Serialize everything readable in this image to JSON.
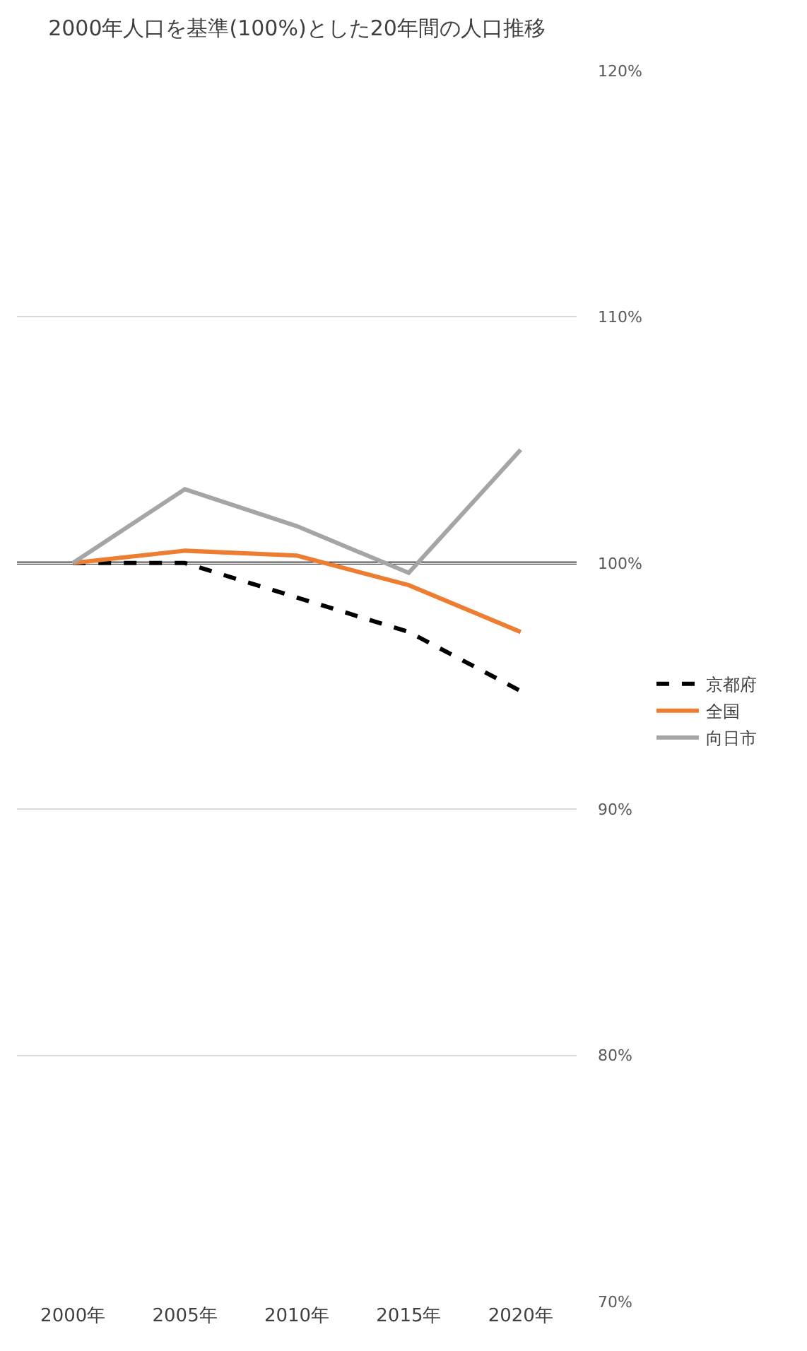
{
  "chart_data": {
    "type": "line",
    "title": "2000年人口を基準(100%)とした20年間の人口推移",
    "categories": [
      "2000年",
      "2005年",
      "2010年",
      "2015年",
      "2020年"
    ],
    "series": [
      {
        "name": "京都府",
        "color": "#000000",
        "line_style": "dashed",
        "values": [
          100,
          100.0,
          98.6,
          97.2,
          94.8
        ]
      },
      {
        "name": "全国",
        "color": "#ed7d31",
        "line_style": "solid",
        "values": [
          100,
          100.5,
          100.3,
          99.1,
          97.2
        ]
      },
      {
        "name": "向日市",
        "color": "#a5a5a5",
        "line_style": "solid",
        "values": [
          100,
          103.0,
          101.5,
          99.6,
          104.6
        ]
      }
    ],
    "ylim": [
      70,
      120
    ],
    "yticks": [
      {
        "value": 70,
        "label": "70%"
      },
      {
        "value": 80,
        "label": "80%"
      },
      {
        "value": 90,
        "label": "90%"
      },
      {
        "value": 100,
        "label": "100%"
      },
      {
        "value": 110,
        "label": "110%"
      },
      {
        "value": 120,
        "label": "120%"
      }
    ],
    "ref_lines": [
      {
        "axis": "y",
        "value": 100,
        "label": null,
        "color": "#000000"
      }
    ],
    "grid": "y",
    "legend": "right",
    "marker": "none"
  }
}
